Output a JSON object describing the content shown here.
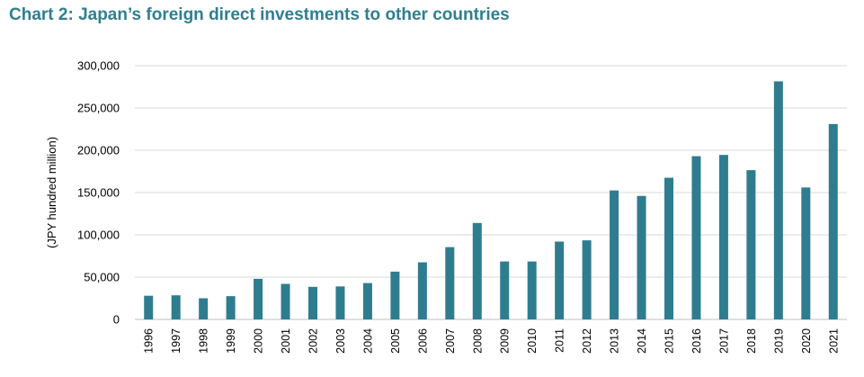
{
  "chart_data": {
    "type": "bar",
    "title": "Chart 2: Japan’s foreign direct investments to other countries",
    "xlabel": "",
    "ylabel": "(JPY hundred million)",
    "ylim": [
      0,
      300000
    ],
    "yticks": [
      0,
      50000,
      100000,
      150000,
      200000,
      250000,
      300000
    ],
    "ytick_labels": [
      "0",
      "50,000",
      "100,000",
      "150,000",
      "200,000",
      "250,000",
      "300,000"
    ],
    "grid": true,
    "legend": "none",
    "bar_color": "#2e7d8f",
    "title_color": "#2f7f90",
    "categories": [
      "1996",
      "1997",
      "1998",
      "1999",
      "2000",
      "2001",
      "2002",
      "2003",
      "2004",
      "2005",
      "2006",
      "2007",
      "2008",
      "2009",
      "2010",
      "2011",
      "2012",
      "2013",
      "2014",
      "2015",
      "2016",
      "2017",
      "2018",
      "2019",
      "2020",
      "2021"
    ],
    "values": [
      28000,
      28500,
      25000,
      27500,
      48000,
      42000,
      38500,
      39000,
      43000,
      56500,
      67500,
      85500,
      114000,
      68500,
      68500,
      92000,
      93500,
      152500,
      146000,
      167500,
      193000,
      194500,
      176500,
      281500,
      156000,
      231000
    ]
  }
}
